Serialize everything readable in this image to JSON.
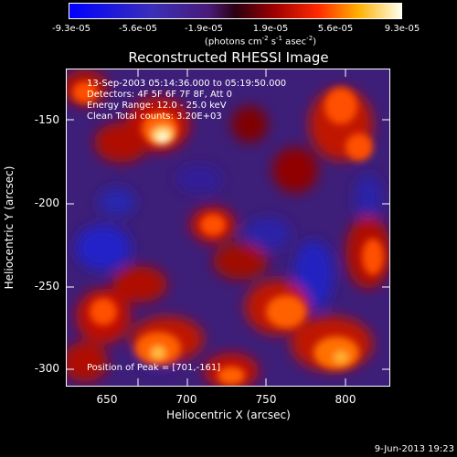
{
  "colorbar": {
    "ticks": [
      "-9.3e-05",
      "-5.6e-05",
      "-1.9e-05",
      "1.9e-05",
      "5.6e-05",
      "9.3e-05"
    ],
    "unit_text": "(photons cm",
    "unit_exp1": "-2",
    "unit_mid": " s",
    "unit_exp2": "-1",
    "unit_end": " asec",
    "unit_exp3": "-2",
    "unit_close": ")"
  },
  "title": "Reconstructed RHESSI Image",
  "annotations": {
    "time": "13-Sep-2003 05:14:36.000 to 05:19:50.000",
    "detectors": "Detectors: 4F 5F 6F 7F 8F, Att 0",
    "energy": "Energy Range: 12.0 - 25.0 keV",
    "clean": "Clean     Total counts: 3.20E+03",
    "peak": "Position of Peak = [701,-161]"
  },
  "axes": {
    "xlabel": "Heliocentric X (arcsec)",
    "ylabel": "Heliocentric Y (arcsec)",
    "xticks": [
      "650",
      "700",
      "750",
      "800"
    ],
    "yticks": [
      "-150",
      "-200",
      "-250",
      "-300"
    ]
  },
  "footer_date": "9-Jun-2013 19:23"
}
